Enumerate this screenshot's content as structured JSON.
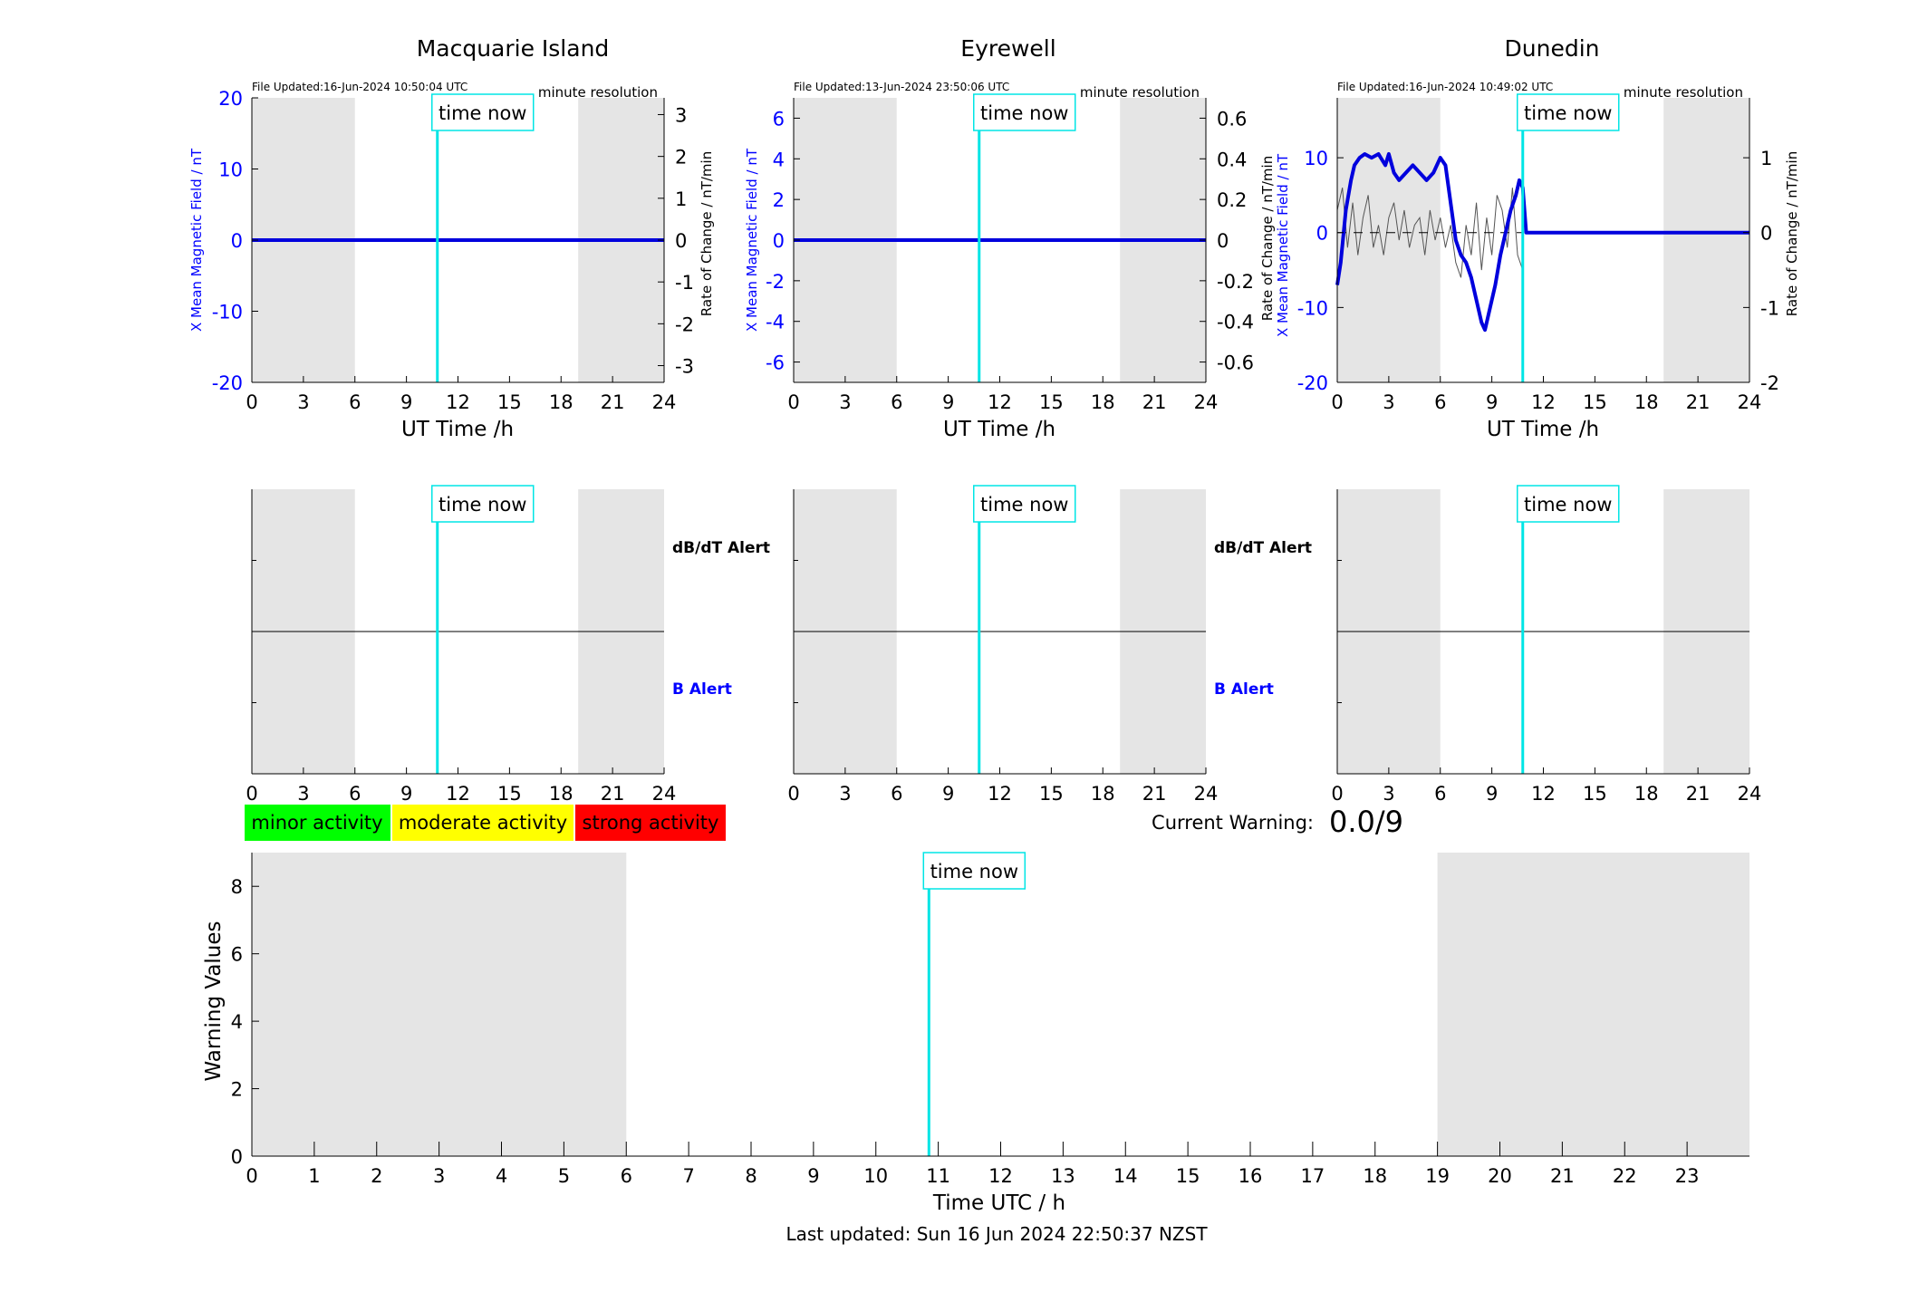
{
  "panels": [
    {
      "title": "Macquarie Island",
      "file_updated": "File Updated:16-Jun-2024 10:50:04 UTC",
      "resolution": "minute resolution",
      "left_ylabel": "X Mean Magnetic Field / nT",
      "left_ylabel2": "",
      "right_ylabel": "Rate of Change / nT/min",
      "left_ylim": [
        -20,
        20
      ],
      "left_ticks": [
        -20,
        -10,
        0,
        10,
        20
      ],
      "right_ylim": [
        -3.4,
        3.4
      ],
      "right_ticks": [
        "-3",
        "-2",
        "-1",
        "0",
        "1",
        "2",
        "3"
      ],
      "right_tick_values": [
        -3,
        -2,
        -1,
        0,
        1,
        2,
        3
      ]
    },
    {
      "title": "Eyrewell",
      "file_updated": "File Updated:13-Jun-2024 23:50:06 UTC",
      "resolution": "minute resolution",
      "left_ylabel": "X Mean Magnetic Field / nT",
      "left_ylabel2": "",
      "right_ylabel": "",
      "left_ylim": [
        -7,
        7
      ],
      "left_ticks": [
        -6,
        -4,
        -2,
        0,
        2,
        4,
        6
      ],
      "right_ylim": [
        -0.7,
        0.7
      ],
      "right_ticks": [
        "-0.6",
        "-0.4",
        "-0.2",
        "0",
        "0.2",
        "0.4",
        "0.6"
      ],
      "right_tick_values": [
        -0.6,
        -0.4,
        -0.2,
        0,
        0.2,
        0.4,
        0.6
      ]
    },
    {
      "title": "Dunedin",
      "file_updated": "File Updated:16-Jun-2024 10:49:02 UTC",
      "resolution": "minute resolution",
      "left_ylabel": "X Mean Magnetic Field / nT",
      "left_ylabel2": "Rate of Change / nT/min",
      "right_ylabel": "Rate of Change / nT/min",
      "left_ylim": [
        -20,
        18
      ],
      "left_ticks": [
        -20,
        -10,
        0,
        10
      ],
      "right_ylim": [
        -2,
        1.8
      ],
      "right_ticks": [
        "-2",
        "-1",
        "0",
        "1"
      ],
      "right_tick_values": [
        -2,
        -1,
        0,
        1
      ]
    }
  ],
  "common": {
    "time_now_label": "time now",
    "x_axis_label": "UT Time /h",
    "x_ticks": [
      "0",
      "3",
      "6",
      "9",
      "12",
      "15",
      "18",
      "21",
      "24"
    ],
    "dbdt_alert": "dB/dT Alert",
    "b_alert": "B Alert"
  },
  "legend": {
    "minor": "minor activity",
    "moderate": "moderate activity",
    "strong": "strong activity",
    "minor_color": "#00ff00",
    "moderate_color": "#ffff00",
    "strong_color": "#ff0000"
  },
  "current_warning": {
    "label": "Current Warning:",
    "value": "0.0/9"
  },
  "bottom": {
    "ylabel": "Warning Values",
    "xlabel": "Time UTC / h",
    "y_ticks": [
      "0",
      "2",
      "4",
      "6",
      "8"
    ],
    "x_ticks": [
      "0",
      "1",
      "2",
      "3",
      "4",
      "5",
      "6",
      "7",
      "8",
      "9",
      "10",
      "11",
      "12",
      "13",
      "14",
      "15",
      "16",
      "17",
      "18",
      "19",
      "20",
      "21",
      "22",
      "23"
    ]
  },
  "footer": {
    "last_updated": "Last updated: Sun 16 Jun 2024 22:50:37 NZST"
  },
  "colors": {
    "field_line": "#0000dd",
    "time_now": "#00e5e5",
    "night_shade": "#e5e5e5",
    "axis_label_blue": "#0000ff",
    "rate_line": "#555555"
  },
  "chart_data": [
    {
      "type": "line",
      "title": "Macquarie Island",
      "xlabel": "UT Time /h",
      "ylabel": "X Mean Magnetic Field / nT",
      "y2label": "Rate of Change / nT/min",
      "xlim": [
        0,
        24
      ],
      "ylim": [
        -20,
        20
      ],
      "y2lim": [
        -3.4,
        3.4
      ],
      "time_now": 10.8,
      "night_shading": [
        [
          0,
          6
        ],
        [
          19,
          24
        ]
      ],
      "series": [
        {
          "name": "X Mean Magnetic Field / nT",
          "x": [
            0,
            24
          ],
          "y": [
            0,
            0
          ]
        }
      ]
    },
    {
      "type": "line",
      "title": "Eyrewell",
      "xlabel": "UT Time /h",
      "ylabel": "X Mean Magnetic Field / nT",
      "xlim": [
        0,
        24
      ],
      "ylim": [
        -7,
        7
      ],
      "y2lim": [
        -0.7,
        0.7
      ],
      "time_now": 10.8,
      "night_shading": [
        [
          0,
          6
        ],
        [
          19,
          24
        ]
      ],
      "series": [
        {
          "name": "X Mean Magnetic Field / nT",
          "x": [
            0,
            24
          ],
          "y": [
            0,
            0
          ]
        }
      ]
    },
    {
      "type": "line",
      "title": "Dunedin",
      "xlabel": "UT Time /h",
      "ylabel": "X Mean Magnetic Field / nT",
      "y2label": "Rate of Change / nT/min",
      "xlim": [
        0,
        24
      ],
      "ylim": [
        -20,
        18
      ],
      "y2lim": [
        -2,
        1.8
      ],
      "time_now": 10.8,
      "night_shading": [
        [
          0,
          6
        ],
        [
          19,
          24
        ]
      ],
      "series": [
        {
          "name": "X Mean Magnetic Field / nT",
          "x": [
            0,
            0.2,
            0.5,
            0.8,
            1.0,
            1.3,
            1.6,
            2.0,
            2.4,
            2.8,
            3.0,
            3.3,
            3.6,
            4.0,
            4.4,
            4.8,
            5.2,
            5.6,
            6.0,
            6.3,
            6.6,
            6.9,
            7.2,
            7.5,
            7.8,
            8.1,
            8.4,
            8.6,
            8.9,
            9.2,
            9.5,
            9.8,
            10.1,
            10.4,
            10.6,
            10.8,
            11.0,
            24
          ],
          "y": [
            -7,
            -4,
            3,
            7,
            9,
            10,
            10.5,
            10,
            10.5,
            9,
            10.5,
            8,
            7,
            8,
            9,
            8,
            7,
            8,
            10,
            9,
            4,
            -1,
            -3,
            -4,
            -6,
            -9,
            -12,
            -13,
            -10,
            -7,
            -3,
            0,
            3,
            5,
            7,
            6,
            0,
            0
          ]
        },
        {
          "name": "Rate of Change / nT/min",
          "x": [
            0,
            0.3,
            0.6,
            0.9,
            1.2,
            1.5,
            1.8,
            2.1,
            2.4,
            2.7,
            3.0,
            3.3,
            3.6,
            3.9,
            4.2,
            4.5,
            4.8,
            5.1,
            5.4,
            5.7,
            6.0,
            6.3,
            6.6,
            6.9,
            7.2,
            7.5,
            7.8,
            8.1,
            8.4,
            8.7,
            9.0,
            9.3,
            9.6,
            9.9,
            10.2,
            10.5,
            10.8
          ],
          "y": [
            0.3,
            0.6,
            -0.2,
            0.4,
            -0.3,
            0.2,
            0.5,
            -0.2,
            0.1,
            -0.3,
            0.2,
            0.4,
            -0.1,
            0.3,
            -0.2,
            0.1,
            0.2,
            -0.3,
            0.3,
            -0.1,
            0.2,
            -0.2,
            0.1,
            -0.4,
            -0.6,
            0.1,
            -0.3,
            0.4,
            -0.5,
            0.2,
            -0.3,
            0.5,
            0.3,
            -0.2,
            0.6,
            -0.3,
            -0.5
          ]
        }
      ]
    },
    {
      "type": "line",
      "title": "",
      "xlabel": "Time UTC / h",
      "ylabel": "Warning Values",
      "xlim": [
        0,
        24
      ],
      "ylim": [
        0,
        9
      ],
      "time_now": 10.85,
      "night_shading": [
        [
          0,
          6
        ],
        [
          19,
          24
        ]
      ],
      "series": []
    }
  ]
}
